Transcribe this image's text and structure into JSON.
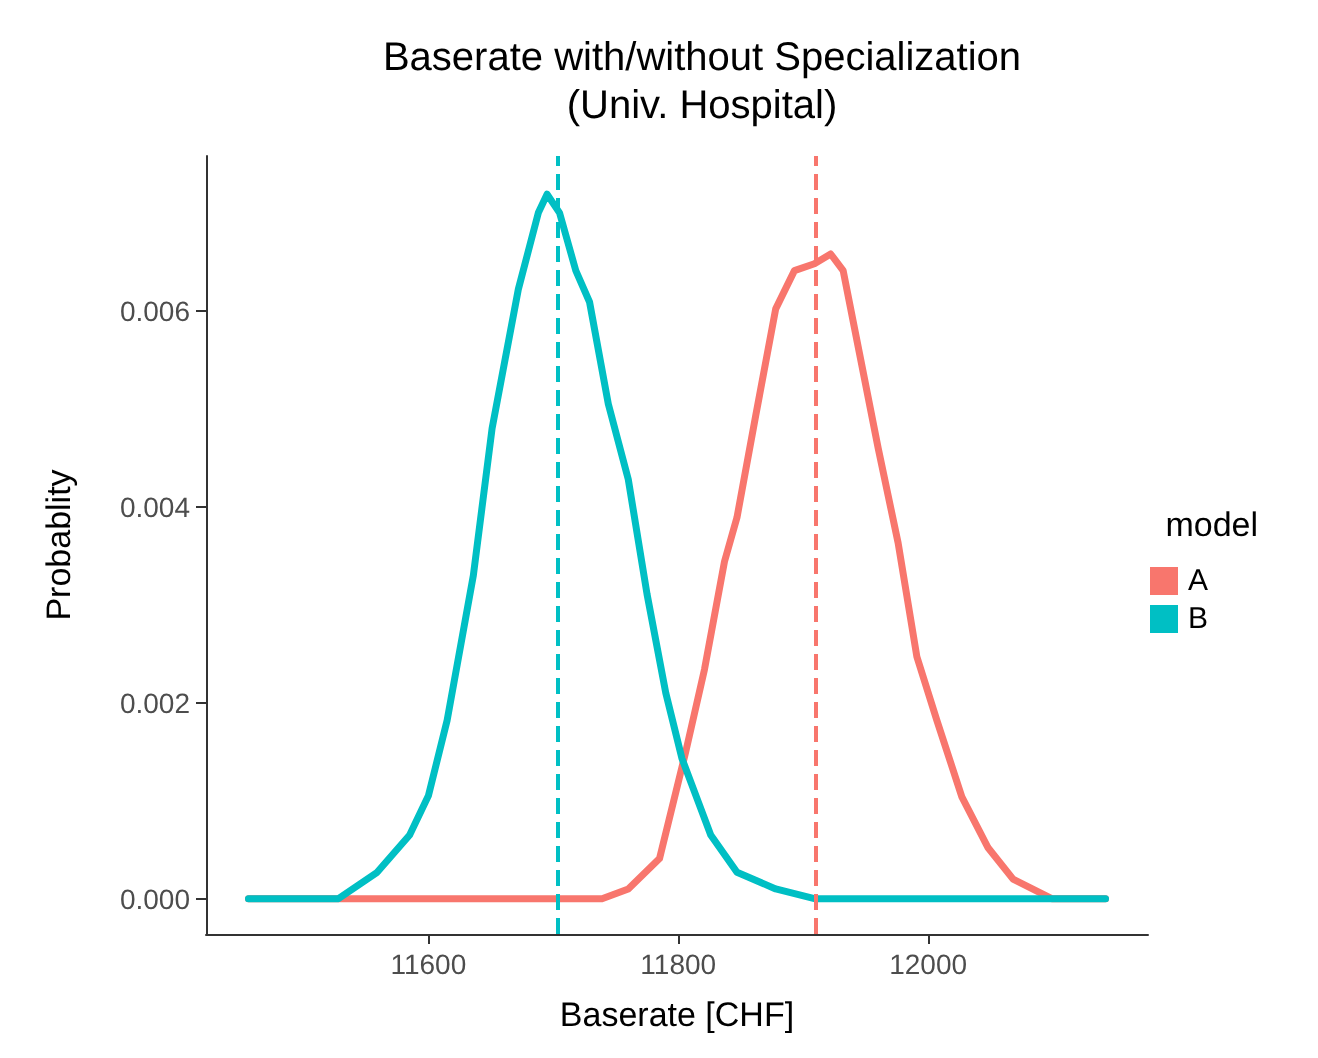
{
  "chart_data": {
    "type": "line",
    "title": "Baserate with/without Specialization\n(Univ. Hospital)",
    "xlabel": "Baserate [CHF]",
    "ylabel": "Probablity",
    "legend_title": "model",
    "legend": "right",
    "grid": false,
    "marker": "none",
    "line_style": "solid",
    "xlim": [
      11422,
      12176
    ],
    "xticks": [
      11600,
      11800,
      12000
    ],
    "ylim": [
      -0.00036,
      0.00758
    ],
    "yticks": [
      {
        "value": 0,
        "label": "0.000"
      },
      0.002,
      0.004,
      0.006
    ],
    "series": [
      {
        "name": "A",
        "color": "#f8766d",
        "x": [
          11456,
          11698,
          11739,
          11760,
          11785,
          11806,
          11821,
          11837,
          11847,
          11862,
          11878,
          11893,
          11909,
          11922,
          11932,
          11945,
          11960,
          11976,
          11991,
          12007,
          12027,
          12048,
          12068,
          12099,
          12142
        ],
        "values": [
          0,
          0,
          0,
          0.0001,
          0.00041,
          0.0015,
          0.00234,
          0.00344,
          0.00389,
          0.00493,
          0.00602,
          0.00641,
          0.00648,
          0.00658,
          0.00641,
          0.00557,
          0.0046,
          0.00363,
          0.00247,
          0.00182,
          0.00104,
          0.00052,
          0.0002,
          0,
          0
        ]
      },
      {
        "name": "B",
        "color": "#00bfc4",
        "x": [
          11456,
          11528,
          11559,
          11585,
          11600,
          11615,
          11636,
          11651,
          11672,
          11688,
          11695,
          11705,
          11718,
          11729,
          11744,
          11760,
          11775,
          11790,
          11803,
          11826,
          11847,
          11878,
          11909,
          12142
        ],
        "values": [
          0,
          0,
          0.00027,
          0.00065,
          0.00105,
          0.00182,
          0.0033,
          0.0048,
          0.00622,
          0.007,
          0.00719,
          0.007,
          0.00641,
          0.00609,
          0.00505,
          0.00428,
          0.00311,
          0.0021,
          0.00143,
          0.00065,
          0.00027,
          0.0001,
          0,
          0
        ]
      }
    ],
    "ref_lines": [
      {
        "axis": "x",
        "value": 11910,
        "color": "#f8766d",
        "line_style": "dashed"
      },
      {
        "axis": "x",
        "value": 11703,
        "color": "#00bfc4",
        "line_style": "dashed"
      }
    ]
  }
}
